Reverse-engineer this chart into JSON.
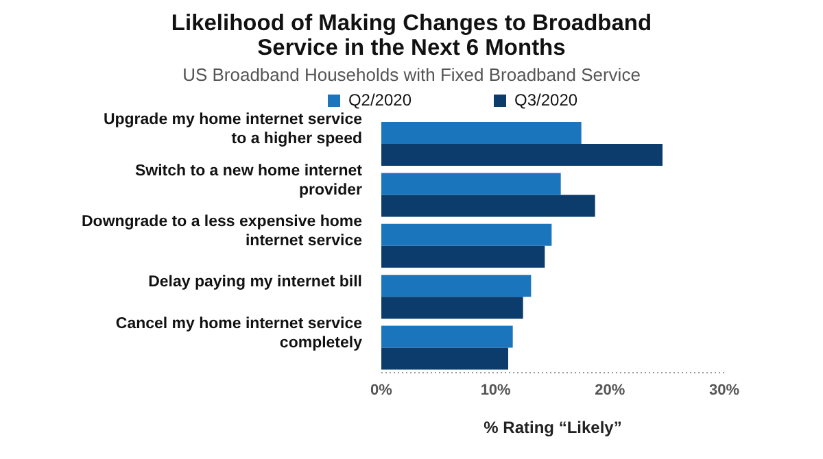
{
  "chart_data": {
    "type": "bar",
    "orientation": "horizontal",
    "title": "Likelihood of Making Changes to Broadband Service in the Next 6 Months",
    "subtitle": "US Broadband Households with Fixed Broadband Service",
    "categories": [
      "Upgrade my home internet service to a higher speed",
      "Switch to a new home internet provider",
      "Downgrade to a less expensive home internet service",
      "Delay paying my internet bill",
      "Cancel my home internet service completely"
    ],
    "series": [
      {
        "name": "Q2/2020",
        "color": "#1a75bc",
        "values": [
          17.5,
          15.7,
          14.9,
          13.1,
          11.5
        ]
      },
      {
        "name": "Q3/2020",
        "color": "#0c3c6b",
        "values": [
          24.6,
          18.7,
          14.3,
          12.4,
          11.1
        ]
      }
    ],
    "xlim": [
      0,
      30
    ],
    "xticks": [
      {
        "value": 0,
        "label": "0%"
      },
      {
        "value": 10,
        "label": "10%"
      },
      {
        "value": 20,
        "label": "20%"
      },
      {
        "value": 30,
        "label": "30%"
      }
    ],
    "xlabel": "% Rating “Likely”",
    "legend": "top",
    "grid": false
  }
}
